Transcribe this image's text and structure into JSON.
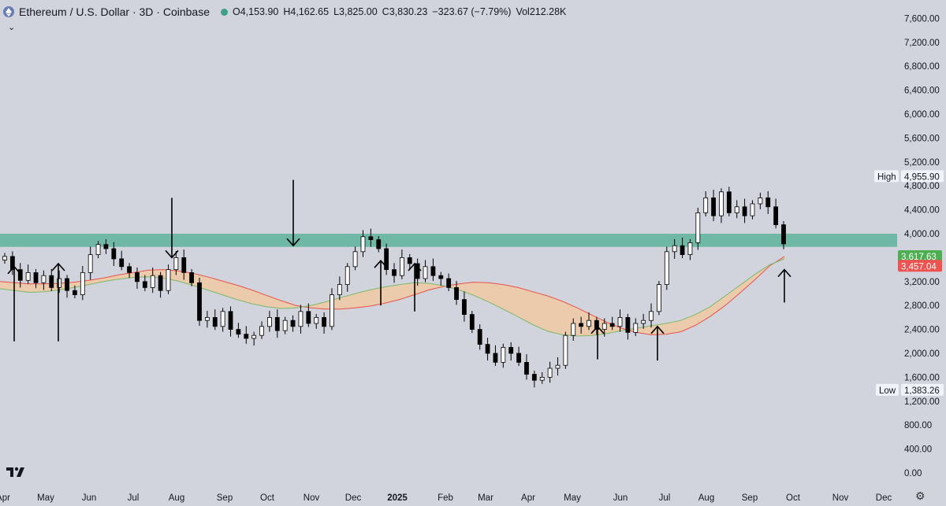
{
  "header": {
    "title": "Ethereum / U.S. Dollar · 3D · Coinbase",
    "open": "O4,153.90",
    "high": "H4,162.65",
    "low": "L3,825.00",
    "close": "C3,830.23",
    "change": "−323.67 (−7.79%)",
    "volume": "Vol212.28K"
  },
  "icons": {
    "symbol": "ethereum-logo-icon",
    "collapse": "chevron-down-icon",
    "brand": "tradingview-logo-icon",
    "settings": "gear-icon"
  },
  "colors": {
    "background": "#d1d4dc",
    "up_candle": "#ffffff",
    "down_candle": "#000000",
    "ribbon_fill": "#f0c9a2",
    "ribbon_upper": "#e8524a",
    "ribbon_lower": "#7cb96a",
    "zone": "#6fb8a5",
    "label_green": "#4caf50",
    "label_red": "#ef5350"
  },
  "chart_data": {
    "type": "candlestick",
    "ylim": [
      -200,
      8000
    ],
    "y_ticks": [
      "7,600.00",
      "7,200.00",
      "6,800.00",
      "6,400.00",
      "6,000.00",
      "5,600.00",
      "5,200.00",
      "4,800.00",
      "4,400.00",
      "4,000.00",
      "3,200.00",
      "2,800.00",
      "2,400.00",
      "2,000.00",
      "1,600.00",
      "1,200.00",
      "800.00",
      "400.00",
      "0.00"
    ],
    "x_ticks": [
      "Apr",
      "May",
      "Jun",
      "Jul",
      "Aug",
      "Sep",
      "Oct",
      "Nov",
      "Dec",
      "2025",
      "Feb",
      "Mar",
      "Apr",
      "May",
      "Jun",
      "Jul",
      "Aug",
      "Sep",
      "Oct",
      "Nov",
      "Dec"
    ],
    "price_labels": {
      "high_label": "High",
      "high_value": "4,955.90",
      "low_label": "Low",
      "low_value": "1,383.26",
      "upper_band_value": "3,617.63",
      "lower_band_value": "3,457.04"
    },
    "resistance_zone": [
      3780,
      4000
    ],
    "close_series": [
      3620,
      3400,
      3220,
      3350,
      3180,
      3300,
      3100,
      3250,
      3050,
      2980,
      3350,
      3650,
      3820,
      3750,
      3580,
      3450,
      3350,
      3200,
      3100,
      3300,
      3050,
      3400,
      3600,
      3350,
      3180,
      2550,
      2600,
      2450,
      2700,
      2400,
      2320,
      2250,
      2300,
      2450,
      2600,
      2380,
      2550,
      2450,
      2700,
      2500,
      2600,
      2450,
      2980,
      3150,
      3450,
      3700,
      3950,
      3900,
      3750,
      3400,
      3300,
      3600,
      3500,
      3250,
      3450,
      3300,
      3250,
      3100,
      2900,
      2650,
      2400,
      2150,
      2000,
      1850,
      2100,
      2000,
      1850,
      1650,
      1550,
      1600,
      1750,
      1800,
      2300,
      2500,
      2450,
      2550,
      2400,
      2500,
      2450,
      2600,
      2350,
      2500,
      2550,
      2700,
      3150,
      3700,
      3800,
      3650,
      3850,
      4350,
      4600,
      4300,
      4700,
      4350,
      4450,
      4300,
      4500,
      4600,
      4450,
      4150,
      3830
    ],
    "ribbon_upper": [
      3200,
      3180,
      3160,
      3160,
      3170,
      3190,
      3220,
      3260,
      3310,
      3350,
      3390,
      3400,
      3380,
      3340,
      3280,
      3210,
      3140,
      3060,
      2970,
      2880,
      2800,
      2760,
      2740,
      2740,
      2760,
      2790,
      2840,
      2900,
      2980,
      3060,
      3120,
      3160,
      3190,
      3180,
      3150,
      3100,
      3030,
      2960,
      2870,
      2760,
      2640,
      2520,
      2420,
      2350,
      2310,
      2320,
      2360,
      2470,
      2620,
      2800,
      3010,
      3230,
      3460,
      3620
    ],
    "ribbon_lower": [
      3080,
      3050,
      3020,
      3030,
      3060,
      3100,
      3150,
      3200,
      3240,
      3270,
      3280,
      3260,
      3210,
      3140,
      3060,
      2980,
      2900,
      2830,
      2780,
      2750,
      2760,
      2800,
      2860,
      2930,
      3000,
      3060,
      3110,
      3150,
      3180,
      3170,
      3130,
      3060,
      2970,
      2860,
      2740,
      2610,
      2480,
      2370,
      2310,
      2290,
      2300,
      2330,
      2380,
      2420,
      2460,
      2500,
      2550,
      2650,
      2780,
      2960,
      3140,
      3320,
      3480,
      3580
    ]
  }
}
